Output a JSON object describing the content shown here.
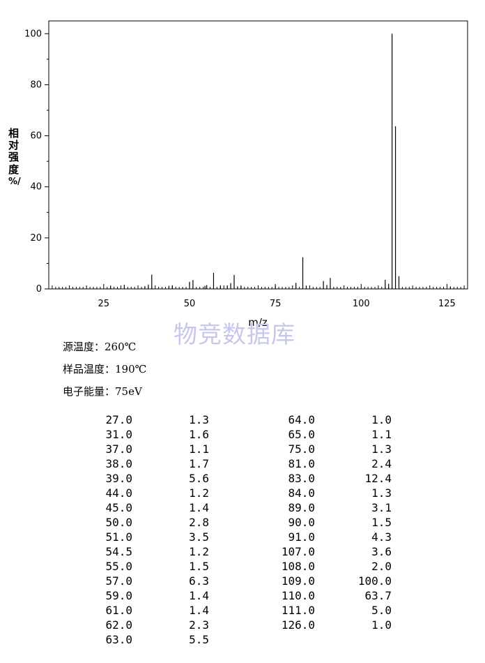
{
  "chart_data": {
    "type": "bar",
    "xlabel": "m/z",
    "ylabel": [
      "相",
      "对",
      "强",
      "度",
      "%/"
    ],
    "xlim": [
      9,
      131
    ],
    "ylim": [
      0,
      105
    ],
    "xticks": [
      25,
      50,
      75,
      100,
      125
    ],
    "yticks": [
      0,
      20,
      40,
      60,
      80,
      100
    ],
    "grid": false,
    "peaks": [
      {
        "x": 27.0,
        "y": 1.3
      },
      {
        "x": 31.0,
        "y": 1.6
      },
      {
        "x": 37.0,
        "y": 1.1
      },
      {
        "x": 38.0,
        "y": 1.7
      },
      {
        "x": 39.0,
        "y": 5.6
      },
      {
        "x": 44.0,
        "y": 1.2
      },
      {
        "x": 45.0,
        "y": 1.4
      },
      {
        "x": 50.0,
        "y": 2.8
      },
      {
        "x": 51.0,
        "y": 3.5
      },
      {
        "x": 54.5,
        "y": 1.2
      },
      {
        "x": 55.0,
        "y": 1.5
      },
      {
        "x": 57.0,
        "y": 6.3
      },
      {
        "x": 59.0,
        "y": 1.4
      },
      {
        "x": 61.0,
        "y": 1.4
      },
      {
        "x": 62.0,
        "y": 2.3
      },
      {
        "x": 63.0,
        "y": 5.5
      },
      {
        "x": 64.0,
        "y": 1.0
      },
      {
        "x": 65.0,
        "y": 1.1
      },
      {
        "x": 75.0,
        "y": 1.3
      },
      {
        "x": 81.0,
        "y": 2.4
      },
      {
        "x": 83.0,
        "y": 12.4
      },
      {
        "x": 84.0,
        "y": 1.3
      },
      {
        "x": 89.0,
        "y": 3.1
      },
      {
        "x": 90.0,
        "y": 1.5
      },
      {
        "x": 91.0,
        "y": 4.3
      },
      {
        "x": 107.0,
        "y": 3.6
      },
      {
        "x": 108.0,
        "y": 2.0
      },
      {
        "x": 109.0,
        "y": 100.0
      },
      {
        "x": 110.0,
        "y": 63.7
      },
      {
        "x": 111.0,
        "y": 5.0
      },
      {
        "x": 126.0,
        "y": 1.0
      }
    ]
  },
  "watermark": "物竞数据库",
  "conditions": [
    "源温度：260℃",
    "样品温度：190℃",
    "电子能量：75eV"
  ],
  "table": {
    "left": [
      [
        "27.0",
        "1.3"
      ],
      [
        "31.0",
        "1.6"
      ],
      [
        "37.0",
        "1.1"
      ],
      [
        "38.0",
        "1.7"
      ],
      [
        "39.0",
        "5.6"
      ],
      [
        "44.0",
        "1.2"
      ],
      [
        "45.0",
        "1.4"
      ],
      [
        "50.0",
        "2.8"
      ],
      [
        "51.0",
        "3.5"
      ],
      [
        "54.5",
        "1.2"
      ],
      [
        "55.0",
        "1.5"
      ],
      [
        "57.0",
        "6.3"
      ],
      [
        "59.0",
        "1.4"
      ],
      [
        "61.0",
        "1.4"
      ],
      [
        "62.0",
        "2.3"
      ],
      [
        "63.0",
        "5.5"
      ]
    ],
    "right": [
      [
        "64.0",
        "1.0"
      ],
      [
        "65.0",
        "1.1"
      ],
      [
        "75.0",
        "1.3"
      ],
      [
        "81.0",
        "2.4"
      ],
      [
        "83.0",
        "12.4"
      ],
      [
        "84.0",
        "1.3"
      ],
      [
        "89.0",
        "3.1"
      ],
      [
        "90.0",
        "1.5"
      ],
      [
        "91.0",
        "4.3"
      ],
      [
        "107.0",
        "3.6"
      ],
      [
        "108.0",
        "2.0"
      ],
      [
        "109.0",
        "100.0"
      ],
      [
        "110.0",
        "63.7"
      ],
      [
        "111.0",
        "5.0"
      ],
      [
        "126.0",
        "1.0"
      ]
    ]
  }
}
